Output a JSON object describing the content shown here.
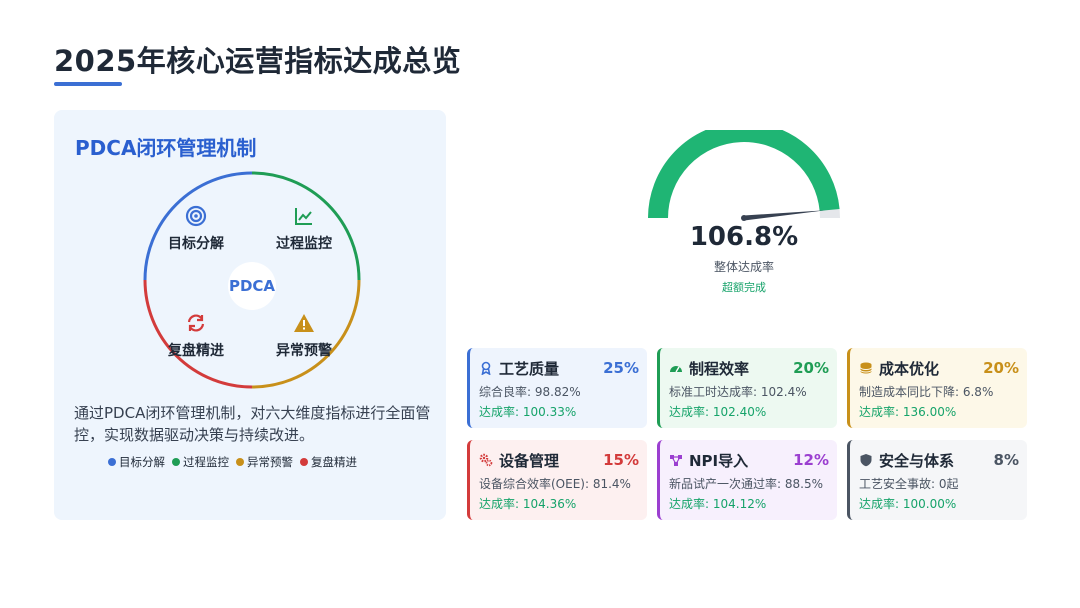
{
  "title": "2025年核心运营指标达成总览",
  "pdca": {
    "title": "PDCA闭环管理机制",
    "center": "PDCA",
    "stages": [
      {
        "label": "目标分解",
        "icon": "target-icon",
        "color": "#3b6fd4"
      },
      {
        "label": "过程监控",
        "icon": "line-chart-icon",
        "color": "#1f9d55"
      },
      {
        "label": "异常预警",
        "icon": "warning-icon",
        "color": "#c8901a"
      },
      {
        "label": "复盘精进",
        "icon": "refresh-icon",
        "color": "#d33b3b"
      }
    ],
    "description": "通过PDCA闭环管理机制，对六大维度指标进行全面管控，实现数据驱动决策与持续改进。"
  },
  "gauge": {
    "value": "106.8%",
    "value_number": 106.8,
    "label": "整体达成率",
    "status": "超额完成",
    "color": "#1fb574"
  },
  "kpis": [
    {
      "name": "工艺质量",
      "weight": "25%",
      "metric": "综合良率: 98.82%",
      "rate": "达成率: 100.33%",
      "icon": "award-icon",
      "color": "#3b6fd4",
      "bg": "#eef4fd"
    },
    {
      "name": "制程效率",
      "weight": "20%",
      "metric": "标准工时达成率: 102.4%",
      "rate": "达成率: 102.40%",
      "icon": "speedometer-icon",
      "color": "#1f9d55",
      "bg": "#edf9f1"
    },
    {
      "name": "成本优化",
      "weight": "20%",
      "metric": "制造成本同比下降: 6.8%",
      "rate": "达成率: 136.00%",
      "icon": "coins-icon",
      "color": "#c8901a",
      "bg": "#fdf8e8"
    },
    {
      "name": "设备管理",
      "weight": "15%",
      "metric": "设备综合效率(OEE): 81.4%",
      "rate": "达成率: 104.36%",
      "icon": "gears-icon",
      "color": "#d33b3b",
      "bg": "#fdf0f0"
    },
    {
      "name": "NPI导入",
      "weight": "12%",
      "metric": "新品试产一次通过率: 88.5%",
      "rate": "达成率: 104.12%",
      "icon": "network-icon",
      "color": "#9b3fd0",
      "bg": "#f7f0fd"
    },
    {
      "name": "安全与体系",
      "weight": "8%",
      "metric": "工艺安全事故: 0起",
      "rate": "达成率: 100.00%",
      "icon": "shield-icon",
      "color": "#4b5563",
      "bg": "#f5f6f8"
    }
  ]
}
